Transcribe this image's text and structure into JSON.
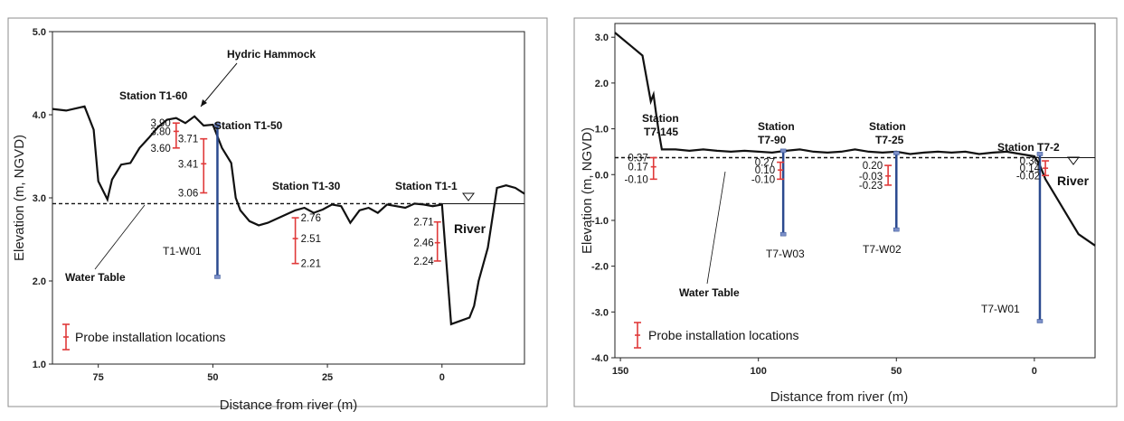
{
  "colors": {
    "probe": "#e03a3a",
    "well": "#2b4a8f",
    "ground": "#111111",
    "frame": "#8c8c8c"
  },
  "chart_data": [
    {
      "type": "line",
      "ylabel": "Elevation (m, NGVD)",
      "xlabel": "Distance from river (m)",
      "xlim": [
        85,
        -18
      ],
      "ylim": [
        1.0,
        5.0
      ],
      "x_ticks": [
        75,
        50,
        25,
        0
      ],
      "y_ticks": [
        1.0,
        2.0,
        3.0,
        4.0,
        5.0
      ],
      "x_tick_labels": [
        "75",
        "50",
        "25",
        "0"
      ],
      "y_tick_labels": [
        "1.0",
        "2.0",
        "3.0",
        "4.0",
        "5.0"
      ],
      "ground_surface": {
        "x": [
          85,
          82,
          78,
          76,
          75,
          73,
          72,
          70,
          68,
          66,
          64,
          62,
          60,
          58,
          56,
          54,
          52,
          50,
          48,
          46,
          45,
          44,
          42,
          40,
          38,
          36,
          34,
          32,
          30,
          28,
          26,
          24,
          22,
          20,
          18,
          16,
          14,
          12,
          10,
          8,
          6,
          4,
          2,
          0,
          -1,
          -2,
          -4,
          -6,
          -7,
          -8,
          -10,
          -12,
          -14,
          -16,
          -18
        ],
        "y": [
          4.07,
          4.05,
          4.1,
          3.82,
          3.2,
          2.98,
          3.22,
          3.4,
          3.42,
          3.6,
          3.72,
          3.85,
          3.94,
          3.96,
          3.9,
          3.98,
          3.87,
          3.88,
          3.6,
          3.42,
          3.0,
          2.85,
          2.72,
          2.67,
          2.7,
          2.75,
          2.8,
          2.85,
          2.88,
          2.82,
          2.86,
          2.92,
          2.9,
          2.7,
          2.85,
          2.88,
          2.82,
          2.92,
          2.9,
          2.88,
          2.93,
          2.92,
          2.9,
          2.92,
          2.2,
          1.48,
          1.52,
          1.56,
          1.7,
          2.0,
          2.4,
          3.12,
          3.15,
          3.12,
          3.05
        ]
      },
      "water_table": {
        "y": 2.93,
        "label": "Water Table"
      },
      "wells": [
        {
          "name": "T1-W01",
          "x": 49,
          "top": 3.88,
          "bottom": 2.05
        }
      ],
      "probes": [
        {
          "station": "Station T1-60",
          "x": 58,
          "values": [
            3.9,
            3.8,
            3.6
          ],
          "labels": [
            "3.90",
            "3.80",
            "3.60"
          ]
        },
        {
          "station": "Station T1-50",
          "x": 52,
          "values": [
            3.71,
            3.41,
            3.06
          ],
          "labels": [
            "3.71",
            "3.41",
            "3.06"
          ]
        },
        {
          "station": "Station T1-30",
          "x": 32,
          "values": [
            2.76,
            2.51,
            2.21
          ],
          "labels": [
            "2.76",
            "2.51",
            "2.21"
          ]
        },
        {
          "station": "Station T1-1",
          "x": 1,
          "values": [
            2.71,
            2.46,
            2.24
          ],
          "labels": [
            "2.71",
            "2.46",
            "2.24"
          ]
        }
      ],
      "annotations": {
        "feature": "Hydric Hammock",
        "river": "River"
      },
      "legend": {
        "label": "Probe installation locations",
        "position": "bottom-left"
      }
    },
    {
      "type": "line",
      "ylabel": "Elevation (m, NGVD)",
      "xlabel": "Distance from river (m)",
      "xlim": [
        152,
        -22
      ],
      "ylim": [
        -4.0,
        3.3
      ],
      "x_ticks": [
        150,
        100,
        50,
        0
      ],
      "y_ticks": [
        -4.0,
        -3.0,
        -2.0,
        -1.0,
        0.0,
        1.0,
        2.0,
        3.0
      ],
      "x_tick_labels": [
        "150",
        "100",
        "50",
        "0"
      ],
      "y_tick_labels": [
        "-4.0",
        "-3.0",
        "-2.0",
        "-1.0",
        "0.0",
        "1.0",
        "2.0",
        "3.0"
      ],
      "ground_surface": {
        "x": [
          152,
          146,
          142,
          139,
          138,
          137,
          136,
          135,
          130,
          125,
          120,
          115,
          110,
          105,
          100,
          95,
          90,
          85,
          80,
          75,
          70,
          65,
          60,
          55,
          50,
          45,
          40,
          35,
          30,
          25,
          20,
          15,
          10,
          5,
          2,
          0,
          -2,
          -4,
          -8,
          -12,
          -16,
          -22
        ],
        "y": [
          3.1,
          2.8,
          2.6,
          1.6,
          1.75,
          1.3,
          0.9,
          0.55,
          0.55,
          0.52,
          0.55,
          0.52,
          0.5,
          0.52,
          0.5,
          0.48,
          0.52,
          0.55,
          0.5,
          0.48,
          0.5,
          0.55,
          0.5,
          0.48,
          0.5,
          0.45,
          0.48,
          0.5,
          0.48,
          0.5,
          0.45,
          0.48,
          0.5,
          0.45,
          0.42,
          0.4,
          0.2,
          -0.1,
          -0.5,
          -0.9,
          -1.3,
          -1.55
        ]
      },
      "water_table": {
        "y": 0.37,
        "label": "Water Table"
      },
      "wells": [
        {
          "name": "T7-W03",
          "x": 91,
          "top": 0.52,
          "bottom": -1.3
        },
        {
          "name": "T7-W02",
          "x": 50,
          "top": 0.47,
          "bottom": -1.2
        },
        {
          "name": "T7-W01",
          "x": -2,
          "top": 0.45,
          "bottom": -3.2
        }
      ],
      "probes": [
        {
          "station": "Station T7-145",
          "x": 138,
          "values": [
            0.37,
            0.17,
            -0.1
          ],
          "labels": [
            "0.37",
            "0.17",
            "-0.10"
          ]
        },
        {
          "station": "Station T7-90",
          "x": 92,
          "values": [
            0.27,
            0.1,
            -0.1
          ],
          "labels": [
            "0.27",
            "0.10",
            "-0.10"
          ]
        },
        {
          "station": "Station T7-25",
          "x": 53,
          "values": [
            0.2,
            -0.03,
            -0.23
          ],
          "labels": [
            "0.20",
            "-0.03",
            "-0.23"
          ]
        },
        {
          "station": "Station T7-2",
          "x": -4,
          "values": [
            0.3,
            0.14,
            -0.02
          ],
          "labels": [
            "0.30",
            "0.14",
            "-0.02"
          ]
        }
      ],
      "annotations": {
        "river": "River"
      },
      "legend": {
        "label": "Probe installation locations",
        "position": "bottom-left"
      }
    }
  ]
}
